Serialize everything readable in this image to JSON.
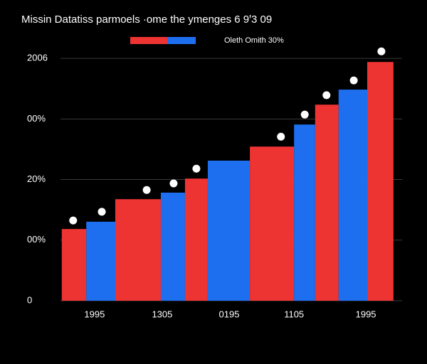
{
  "chart_data": {
    "type": "histogram",
    "title": "Missin Datatiss parmoels ·ome the ymenges 6 9ꞌ3 09",
    "legend_label": "Oleth Omith 30%",
    "colors": [
      "#ee3333",
      "#1e6ff0"
    ],
    "bins": [
      1.4,
      8.5,
      16.9,
      30.1,
      37.1,
      43.7,
      55.9,
      68.7,
      74.8,
      81.6,
      89.9,
      97.5
    ],
    "values": [
      29.6,
      32.6,
      41.9,
      44.6,
      50.4,
      57.8,
      63.6,
      72.7,
      80.9,
      87.1,
      98.5
    ],
    "points": {
      "color": "#ffffff",
      "x": [
        4.7,
        13.0,
        26.0,
        33.8,
        40.4,
        64.9,
        71.8,
        78.1,
        86.0,
        94.0
      ],
      "values": [
        33.1,
        36.7,
        45.7,
        48.4,
        54.5,
        67.7,
        76.8,
        84.8,
        90.9,
        102.9
      ]
    },
    "xlim": [
      0,
      100
    ],
    "xticks": [
      {
        "value": 10.9,
        "label": "1995"
      },
      {
        "value": 30.5,
        "label": "1305"
      },
      {
        "value": 49.9,
        "label": "0195"
      },
      {
        "value": 68.7,
        "label": "1105"
      },
      {
        "value": 89.5,
        "label": "1995"
      }
    ],
    "ylim": [
      0,
      110
    ],
    "yticks": [
      0,
      {
        "value": 25,
        "label": "00%"
      },
      {
        "value": 50,
        "label": "20%"
      },
      {
        "value": 75,
        "label": "00%"
      },
      {
        "value": 100,
        "label": "2006"
      }
    ],
    "grid": true
  }
}
